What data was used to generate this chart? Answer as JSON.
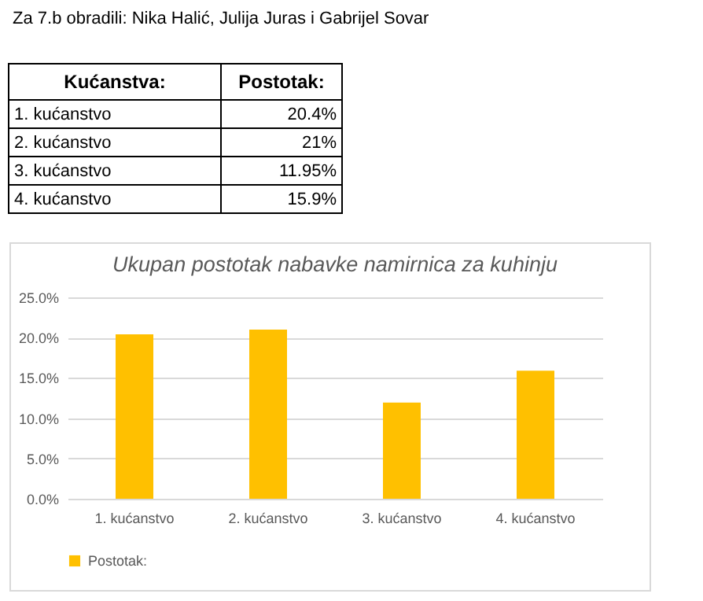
{
  "chart_data": {
    "type": "bar",
    "title": "Ukupan postotak nabavke namirnica za kuhinju",
    "annotations": [
      "Za 7.b obradili: Nika Halić, Julija Juras i Gabrijel Sovar",
      "Kućanstva:"
    ],
    "categories": [
      "1. kućanstvo",
      "2. kućanstvo",
      "3. kućanstvo",
      "4. kućanstvo"
    ],
    "series": [
      {
        "name": "Postotak:",
        "color": "#ffc000",
        "values": [
          20.4,
          21,
          11.95,
          15.9
        ]
      }
    ],
    "value_labels": [
      "20.4%",
      "21%",
      "11.95%",
      "15.9%"
    ],
    "ylim": [
      0,
      25
    ],
    "yticks": [
      {
        "value": 0,
        "label": "0.0%"
      },
      {
        "value": 5,
        "label": "5.0%"
      },
      {
        "value": 10,
        "label": "10.0%"
      },
      {
        "value": 15,
        "label": "15.0%"
      },
      {
        "value": 20,
        "label": "20.0%"
      },
      {
        "value": 25,
        "label": "25.0%"
      }
    ],
    "grid": "y",
    "legend": "bottom"
  }
}
